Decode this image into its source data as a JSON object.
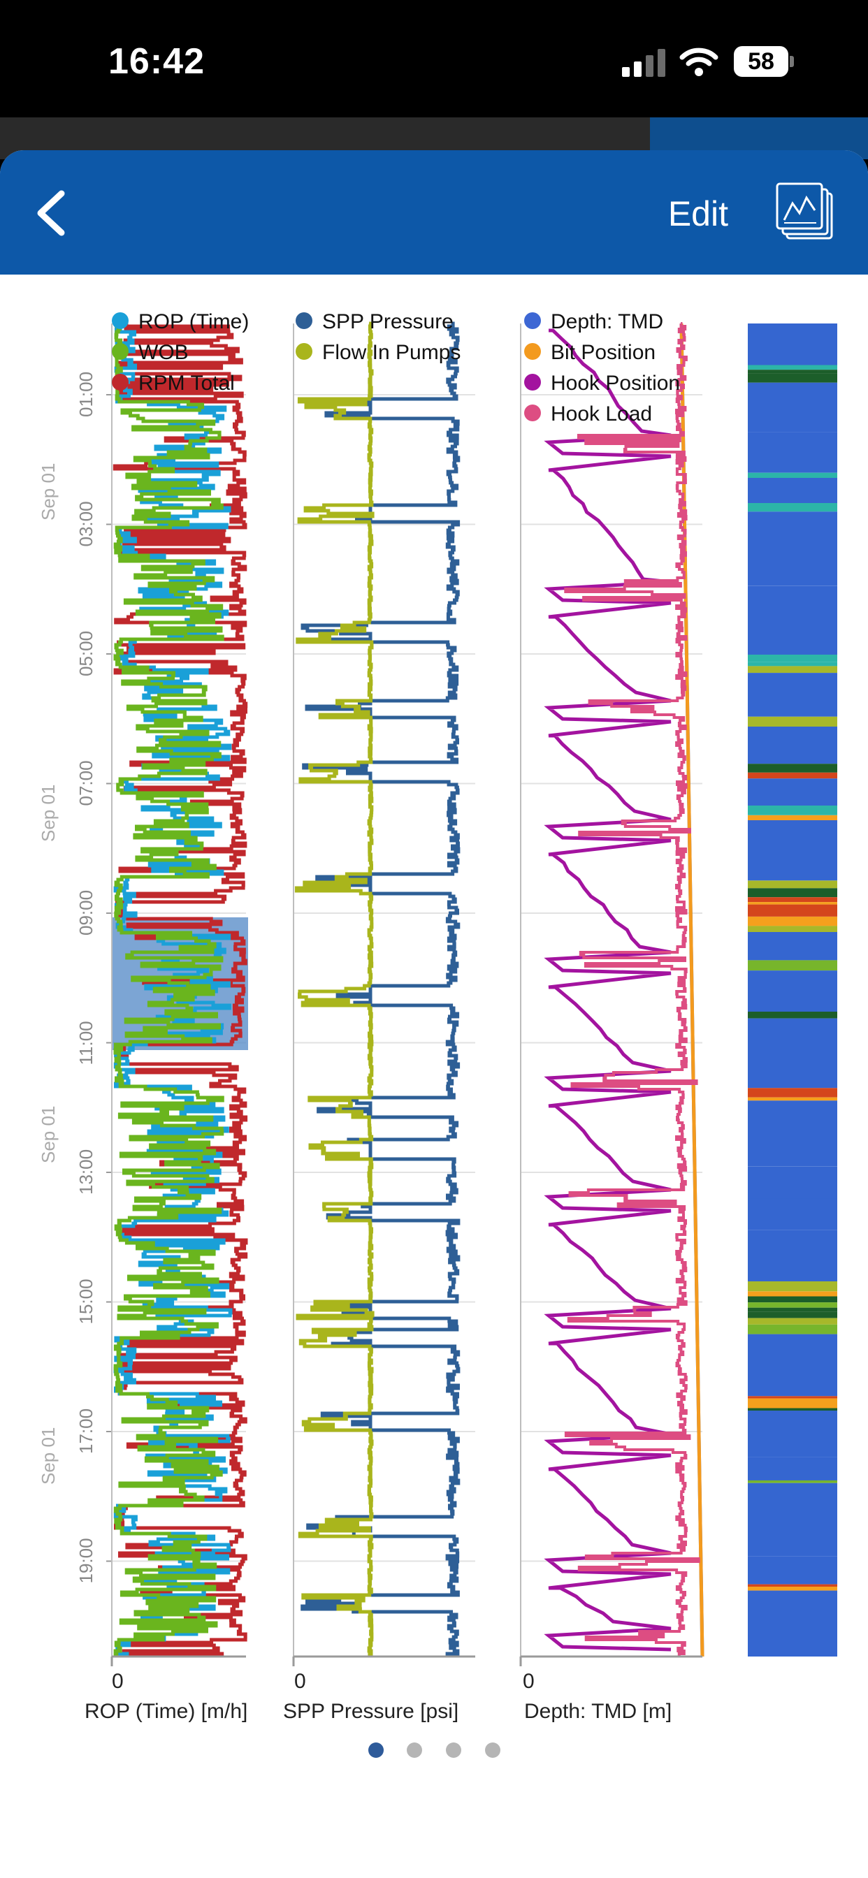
{
  "status_bar": {
    "time": "16:42",
    "battery": "58"
  },
  "nav": {
    "edit_label": "Edit"
  },
  "chart_data": [
    {
      "type": "line",
      "xlabel": "ROP (Time) [m/h]",
      "x_tick": "0",
      "series": [
        {
          "name": "ROP (Time)",
          "color": "#1aa0d8"
        },
        {
          "name": "WOB",
          "color": "#6ab51e"
        },
        {
          "name": "RPM Total",
          "color": "#c0282c"
        }
      ]
    },
    {
      "type": "line",
      "xlabel": "SPP Pressure [psi]",
      "x_tick": "0",
      "series": [
        {
          "name": "SPP Pressure",
          "color": "#2e5f96"
        },
        {
          "name": "Flow In Pumps",
          "color": "#a9b51c"
        }
      ]
    },
    {
      "type": "line",
      "xlabel": "Depth: TMD [m]",
      "x_tick": "0",
      "series": [
        {
          "name": "Depth: TMD",
          "color": "#3d67d4"
        },
        {
          "name": "Bit Position",
          "color": "#f39a1e"
        },
        {
          "name": "Hook Position",
          "color": "#a3139f"
        },
        {
          "name": "Hook Load",
          "color": "#dd4d82"
        }
      ]
    }
  ],
  "time_axis": {
    "ticks": [
      "01:00",
      "03:00",
      "05:00",
      "07:00",
      "09:00",
      "11:00",
      "13:00",
      "15:00",
      "17:00",
      "19:00"
    ],
    "dates": [
      "Sep 01",
      "Sep 01",
      "Sep 01",
      "Sep 01"
    ]
  },
  "activity_colors": [
    "#3566d0",
    "#2cb5a8",
    "#f5a01d",
    "#a7b82a",
    "#d4461c",
    "#1c5e2a",
    "#77b52c"
  ],
  "pager": {
    "pages": 4,
    "active": 0
  }
}
